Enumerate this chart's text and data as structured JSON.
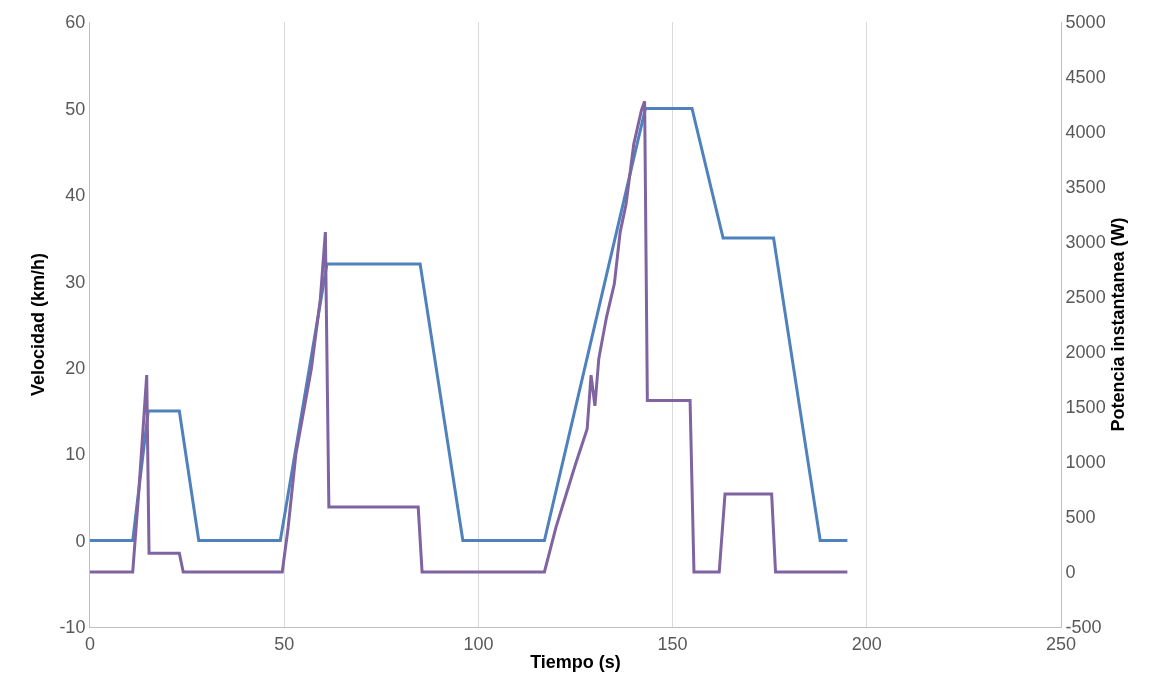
{
  "chart_data": {
    "type": "line",
    "xlabel": "Tiempo (s)",
    "ylabel": "Velocidad (km/h)",
    "y2label": "Potencia instantanea (W)",
    "xlim": [
      0,
      250
    ],
    "xticks": [
      0,
      50,
      100,
      150,
      200,
      250
    ],
    "ylim": [
      -10,
      60
    ],
    "yticks": [
      -10,
      0,
      10,
      20,
      30,
      40,
      50,
      60
    ],
    "y2lim": [
      -500,
      5000
    ],
    "y2ticks": [
      -500,
      0,
      500,
      1000,
      1500,
      2000,
      2500,
      3000,
      3500,
      4000,
      4500,
      5000
    ],
    "grid": "x",
    "marker": "none",
    "line_style": "solid",
    "series": [
      {
        "color": "#4f81bd",
        "x": [
          0,
          11,
          15,
          23,
          28,
          49,
          61,
          85,
          96,
          117,
          143,
          155,
          163,
          176,
          188,
          195
        ],
        "values": [
          0,
          0,
          15,
          15,
          0,
          0,
          32,
          32,
          0,
          0,
          50,
          50,
          35,
          35,
          0,
          0
        ]
      },
      {
        "color": "#8064a2",
        "axis": "y2",
        "x": [
          0,
          11,
          12.5,
          14.6,
          15.2,
          23,
          24,
          49.5,
          51,
          53,
          57,
          59.3,
          60.6,
          61.5,
          84.5,
          85.5,
          117,
          120,
          125,
          128,
          129,
          130,
          131,
          133,
          135,
          136.5,
          138,
          140,
          142,
          142.8,
          143.5,
          154.5,
          155.5,
          162,
          163.5,
          175.5,
          176.5,
          195
        ],
        "values": [
          0,
          0,
          700,
          1790,
          170,
          170,
          0,
          0,
          400,
          1070,
          1850,
          2480,
          3090,
          590,
          590,
          0,
          0,
          410,
          980,
          1300,
          1790,
          1510,
          1940,
          2320,
          2620,
          3090,
          3340,
          3890,
          4200,
          4280,
          1560,
          1560,
          0,
          0,
          710,
          710,
          0,
          0
        ]
      }
    ]
  }
}
